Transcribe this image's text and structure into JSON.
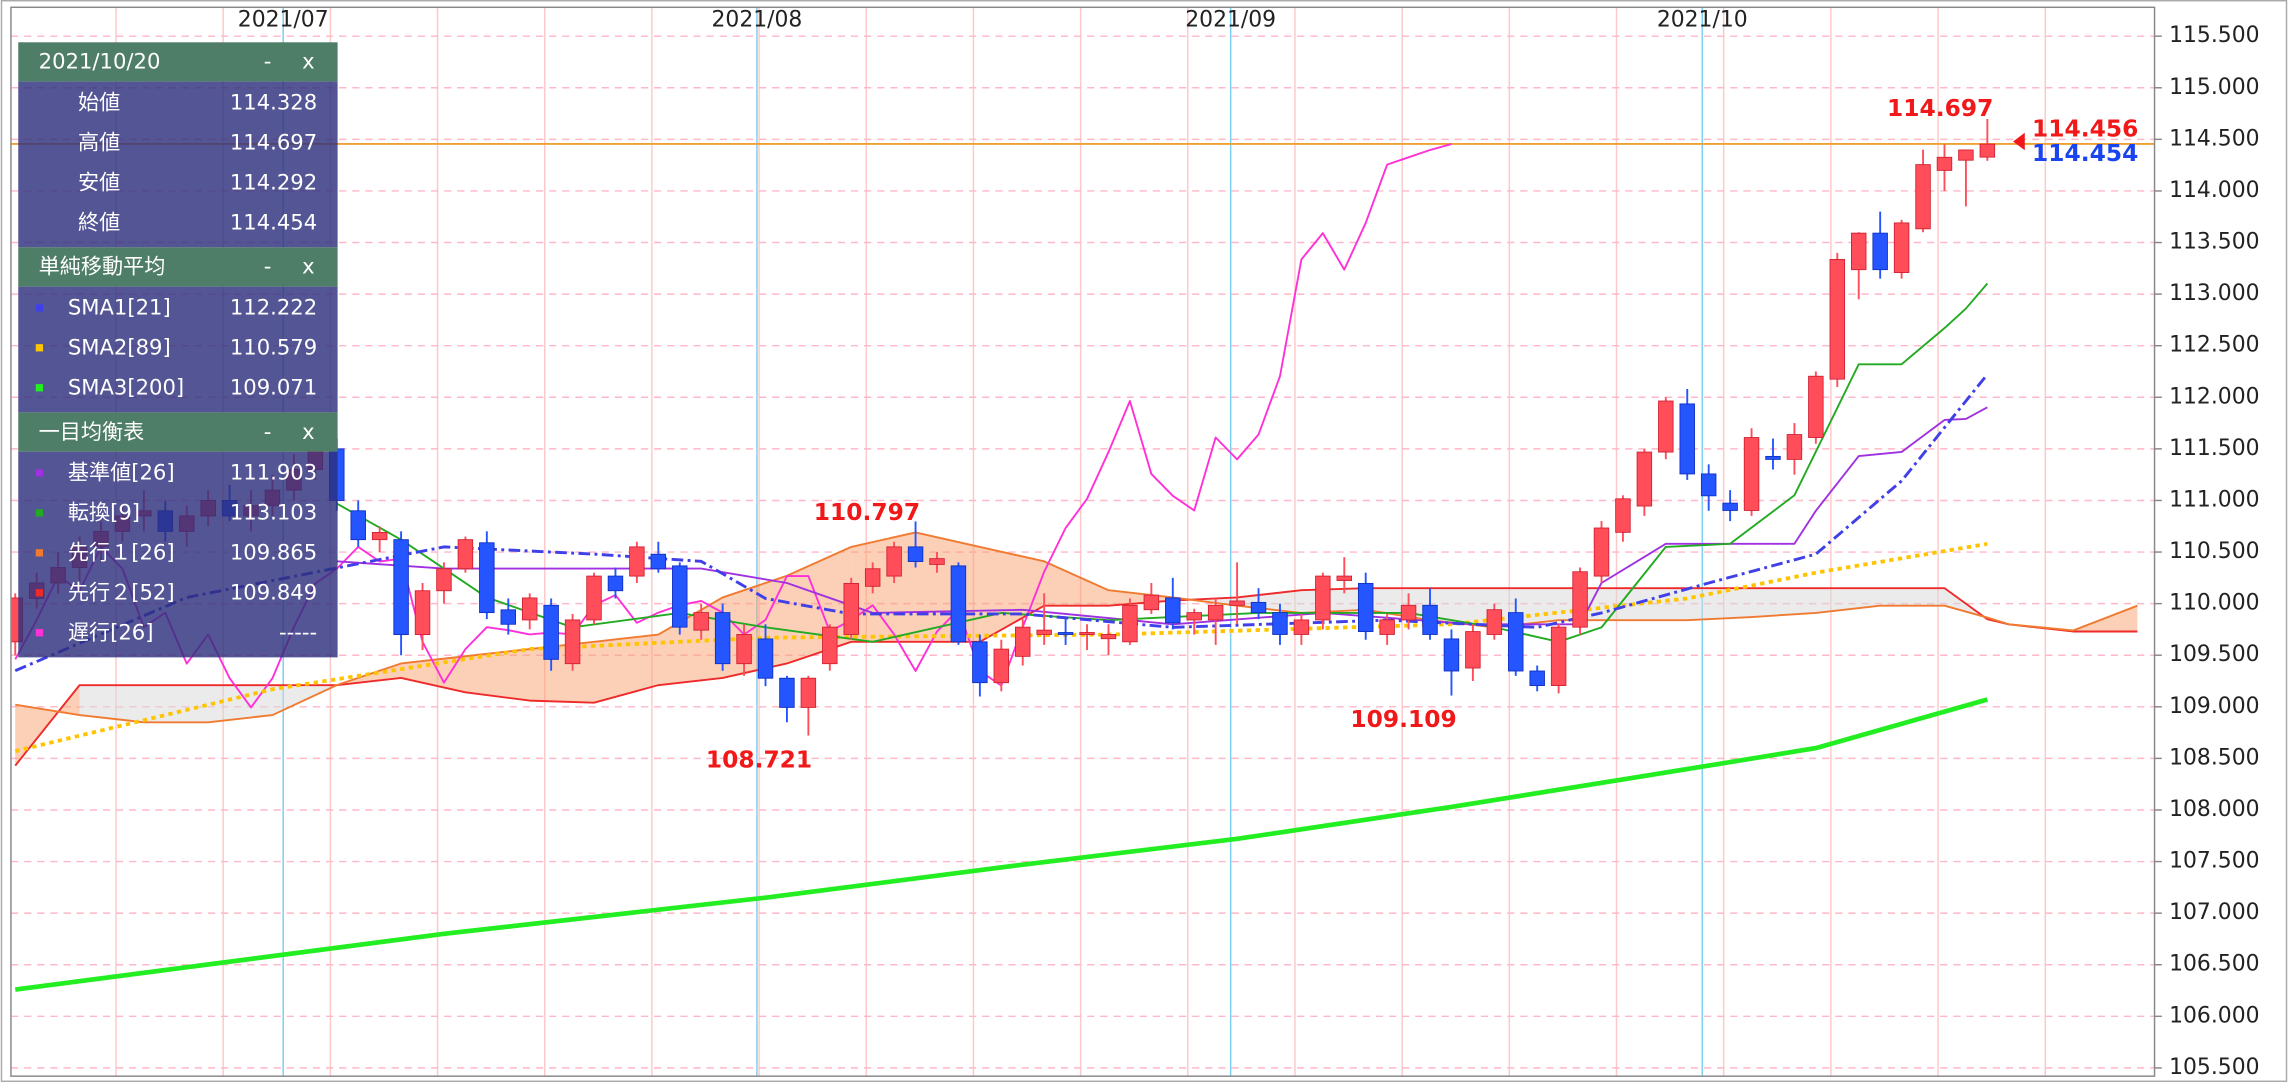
{
  "chart_data": {
    "type": "candlestick",
    "date": "2021/10/20",
    "controls": {
      "minimize": "-",
      "close": "x"
    },
    "xlim": [
      -0.2,
      99.8
    ],
    "xticks": [
      {
        "value": 12.5,
        "label": "2021/07"
      },
      {
        "value": 34.6,
        "label": "2021/08"
      },
      {
        "value": 56.7,
        "label": "2021/09"
      },
      {
        "value": 78.7,
        "label": "2021/10"
      }
    ],
    "ylim": [
      105.42,
      115.78
    ],
    "yticks": [
      {
        "value": 105.5,
        "label": "105.500"
      },
      {
        "value": 106,
        "label": "106.000"
      },
      {
        "value": 106.5,
        "label": "106.500"
      },
      {
        "value": 107,
        "label": "107.000"
      },
      {
        "value": 107.5,
        "label": "107.500"
      },
      {
        "value": 108,
        "label": "108.000"
      },
      {
        "value": 108.5,
        "label": "108.500"
      },
      {
        "value": 109,
        "label": "109.000"
      },
      {
        "value": 109.5,
        "label": "109.500"
      },
      {
        "value": 110,
        "label": "110.000"
      },
      {
        "value": 110.5,
        "label": "110.500"
      },
      {
        "value": 111,
        "label": "111.000"
      },
      {
        "value": 111.5,
        "label": "111.500"
      },
      {
        "value": 112,
        "label": "112.000"
      },
      {
        "value": 112.5,
        "label": "112.500"
      },
      {
        "value": 113,
        "label": "113.000"
      },
      {
        "value": 113.5,
        "label": "113.500"
      },
      {
        "value": 114,
        "label": "114.000"
      },
      {
        "value": 114.5,
        "label": "114.500"
      },
      {
        "value": 115,
        "label": "115.000"
      },
      {
        "value": 115.5,
        "label": "115.500"
      }
    ],
    "grid": true,
    "up_color": "#ff4d5a",
    "down_color": "#2455ff",
    "ohlc_labels": [
      "始値",
      "高値",
      "安値",
      "終値"
    ],
    "open": [
      109.63,
      110.05,
      110.2,
      110.35,
      110.55,
      110.7,
      110.85,
      110.9,
      110.7,
      110.85,
      111.0,
      110.85,
      110.95,
      111.1,
      111.3,
      111.5,
      110.9,
      110.62,
      110.62,
      109.7,
      110.125,
      110.338,
      110.59,
      109.94,
      109.842,
      109.984,
      109.418,
      109.842,
      110.267,
      110.267,
      110.479,
      110.366,
      109.743,
      109.913,
      109.418,
      109.658,
      109.277,
      108.994,
      109.418,
      109.701,
      110.168,
      110.267,
      110.55,
      110.38,
      110.366,
      109.63,
      109.234,
      109.489,
      109.701,
      109.72,
      109.7,
      109.66,
      109.63,
      109.941,
      110.055,
      109.842,
      109.842,
      109.984,
      110.012,
      109.913,
      109.701,
      109.842,
      110.224,
      110.196,
      109.701,
      109.842,
      109.984,
      109.658,
      109.376,
      109.701,
      109.913,
      109.347,
      109.206,
      109.772,
      110.267,
      110.691,
      110.946,
      111.469,
      111.936,
      111.257,
      110.974,
      110.903,
      111.427,
      111.398,
      111.61,
      112.176,
      113.237,
      113.591,
      113.209,
      113.633,
      114.199,
      114.298,
      114.328
    ],
    "high": [
      110.1,
      110.3,
      110.5,
      110.65,
      110.8,
      110.95,
      111.1,
      111.0,
      110.95,
      111.1,
      111.15,
      111.1,
      111.25,
      111.45,
      111.653,
      111.6,
      111.0,
      110.75,
      110.7,
      110.2,
      110.4,
      110.65,
      110.7,
      110.05,
      110.1,
      110.05,
      109.9,
      110.3,
      110.35,
      110.6,
      110.6,
      110.4,
      110.0,
      110.0,
      109.8,
      109.8,
      109.3,
      109.3,
      109.8,
      110.25,
      110.4,
      110.6,
      110.797,
      110.5,
      110.4,
      109.7,
      109.65,
      109.85,
      110.1,
      109.85,
      109.8,
      109.8,
      110.05,
      110.2,
      110.25,
      109.95,
      110.05,
      110.4,
      110.15,
      110.0,
      109.9,
      110.3,
      110.45,
      110.3,
      109.9,
      110.1,
      110.15,
      109.75,
      109.8,
      110.0,
      110.05,
      109.4,
      109.8,
      110.35,
      110.8,
      111.05,
      111.5,
      112.0,
      112.08,
      111.35,
      111.1,
      111.7,
      111.6,
      111.75,
      112.25,
      113.4,
      113.6,
      113.8,
      113.72,
      114.4,
      114.45,
      114.4,
      114.697
    ],
    "low": [
      109.5,
      109.95,
      110.1,
      110.2,
      110.4,
      110.6,
      110.7,
      110.6,
      110.55,
      110.75,
      110.8,
      110.7,
      110.85,
      111.0,
      111.2,
      110.9,
      110.55,
      110.5,
      109.5,
      109.55,
      110.0,
      110.3,
      109.85,
      109.7,
      109.75,
      109.35,
      109.35,
      109.8,
      110.05,
      110.2,
      110.3,
      109.7,
      109.65,
      109.35,
      109.3,
      109.2,
      108.85,
      108.721,
      109.35,
      109.65,
      110.1,
      110.2,
      110.35,
      110.3,
      109.6,
      109.1,
      109.15,
      109.4,
      109.6,
      109.6,
      109.55,
      109.5,
      109.6,
      109.9,
      109.75,
      109.7,
      109.6,
      109.8,
      109.85,
      109.6,
      109.6,
      109.75,
      110.1,
      109.65,
      109.6,
      109.75,
      109.65,
      109.109,
      109.25,
      109.65,
      109.3,
      109.15,
      109.13,
      109.7,
      110.2,
      110.6,
      110.85,
      111.4,
      111.2,
      110.9,
      110.8,
      110.85,
      111.3,
      111.25,
      111.55,
      112.1,
      112.95,
      113.15,
      113.15,
      113.6,
      114.0,
      113.85,
      114.292
    ],
    "close": [
      110.055,
      110.2,
      110.35,
      110.55,
      110.7,
      110.85,
      110.9,
      110.7,
      110.85,
      111.0,
      110.85,
      110.95,
      111.1,
      111.3,
      111.5,
      111.0,
      110.62,
      110.69,
      109.7,
      110.125,
      110.338,
      110.62,
      109.913,
      109.8,
      110.055,
      109.46,
      109.842,
      110.267,
      110.125,
      110.55,
      110.338,
      109.772,
      109.913,
      109.418,
      109.701,
      109.277,
      108.994,
      109.277,
      109.772,
      110.196,
      110.338,
      110.55,
      110.408,
      110.436,
      109.63,
      109.234,
      109.559,
      109.772,
      109.743,
      109.701,
      109.72,
      109.701,
      109.984,
      110.083,
      109.814,
      109.913,
      109.984,
      110.026,
      109.913,
      109.701,
      109.842,
      110.267,
      110.267,
      109.729,
      109.842,
      109.984,
      109.701,
      109.347,
      109.729,
      109.941,
      109.347,
      109.206,
      109.772,
      110.309,
      110.733,
      111.016,
      111.469,
      111.964,
      111.257,
      111.045,
      110.903,
      111.61,
      111.398,
      111.639,
      112.204,
      113.336,
      113.591,
      113.237,
      113.69,
      114.255,
      114.326,
      114.397,
      114.454
    ],
    "price_line": {
      "value": 114.456,
      "color": "#f0a030"
    },
    "sma": {
      "title": "単純移動平均",
      "series": [
        {
          "name": "SMA1[21]",
          "color": "#4040e8",
          "style": "dash-dot",
          "x": [
            0,
            8,
            20,
            27,
            32,
            35,
            39,
            47,
            54,
            64,
            71,
            74,
            79,
            84,
            88,
            92
          ],
          "values": [
            109.35,
            110.06,
            110.55,
            110.48,
            110.41,
            110.05,
            109.9,
            109.9,
            109.77,
            109.84,
            109.77,
            109.91,
            110.2,
            110.48,
            111.19,
            112.222
          ]
        },
        {
          "name": "SMA2[89]",
          "color": "#ffc400",
          "style": "dotted",
          "x": [
            0,
            12,
            24,
            35,
            51,
            67,
            78,
            84,
            92
          ],
          "values": [
            108.57,
            109.17,
            109.56,
            109.67,
            109.7,
            109.8,
            110.05,
            110.3,
            110.579
          ]
        },
        {
          "name": "SMA3[200]",
          "color": "#22ee22",
          "style": "thick",
          "x": [
            0,
            20,
            35,
            47,
            57,
            67,
            79,
            84,
            92
          ],
          "values": [
            106.26,
            106.8,
            107.15,
            107.47,
            107.72,
            108.03,
            108.43,
            108.6,
            109.071
          ]
        }
      ]
    },
    "ichimoku": {
      "title": "一目均衡表",
      "cloud_up_color": "#f9a070",
      "cloud_down_color": "#d8d8d8",
      "series": [
        {
          "name": "基準値[26]",
          "color": "#a030e0",
          "style": "solid",
          "x": [
            15,
            20,
            32,
            36,
            40,
            47,
            54,
            61,
            68,
            73,
            74,
            77,
            83,
            84,
            86,
            88,
            90,
            91,
            92
          ],
          "values": [
            110.41,
            110.34,
            110.34,
            110.2,
            109.91,
            109.94,
            109.8,
            109.91,
            109.8,
            109.8,
            110.2,
            110.58,
            110.58,
            110.9,
            111.43,
            111.47,
            111.78,
            111.79,
            111.903
          ]
        },
        {
          "name": "転換[9]",
          "color": "#22aa22",
          "style": "solid",
          "x": [
            15,
            18,
            22,
            26,
            31,
            35,
            40,
            46,
            51,
            58,
            65,
            69,
            72,
            74,
            77,
            80,
            83,
            86,
            88,
            90,
            91,
            92
          ],
          "values": [
            110.97,
            110.62,
            110.06,
            109.77,
            109.91,
            109.77,
            109.63,
            109.91,
            109.84,
            109.91,
            109.91,
            109.77,
            109.63,
            109.77,
            110.55,
            110.58,
            111.05,
            112.32,
            112.32,
            112.67,
            112.86,
            113.103
          ]
        },
        {
          "name": "先行１[26]",
          "color": "#f07a30",
          "style": "solid",
          "x": [
            0,
            3,
            6,
            9,
            12,
            15,
            18,
            21,
            24,
            27,
            30,
            33,
            36,
            39,
            42,
            45,
            48,
            51,
            54,
            57,
            60,
            63,
            66,
            69,
            72,
            75,
            78,
            81,
            84,
            87,
            90,
            92,
            93,
            96,
            99
          ],
          "values": [
            109.02,
            108.92,
            108.85,
            108.85,
            108.92,
            109.21,
            109.42,
            109.49,
            109.56,
            109.63,
            109.7,
            110.06,
            110.27,
            110.55,
            110.69,
            110.55,
            110.41,
            110.13,
            110.06,
            109.98,
            109.91,
            109.94,
            109.84,
            109.77,
            109.84,
            109.84,
            109.84,
            109.87,
            109.91,
            109.98,
            109.98,
            109.865,
            109.8,
            109.74,
            109.98
          ]
        },
        {
          "name": "先行２[52]",
          "color": "#ee2a2a",
          "style": "solid",
          "x": [
            0,
            3,
            6,
            9,
            12,
            15,
            18,
            21,
            24,
            27,
            30,
            33,
            36,
            39,
            42,
            45,
            48,
            51,
            54,
            57,
            60,
            63,
            66,
            69,
            72,
            75,
            78,
            81,
            84,
            87,
            90,
            92,
            93,
            96,
            99
          ],
          "values": [
            108.43,
            109.21,
            109.21,
            109.21,
            109.21,
            109.21,
            109.28,
            109.14,
            109.06,
            109.04,
            109.21,
            109.28,
            109.42,
            109.63,
            109.63,
            109.63,
            109.98,
            109.98,
            110.03,
            110.06,
            110.13,
            110.15,
            110.15,
            110.15,
            110.15,
            110.15,
            110.15,
            110.15,
            110.15,
            110.15,
            110.15,
            109.849,
            109.8,
            109.73,
            109.73
          ]
        },
        {
          "name": "遅行[26]",
          "color": "#ff30d8",
          "style": "solid",
          "value_label": "-----",
          "values": [
            109.46,
            109.842,
            110.267,
            110.125,
            110.55,
            110.338,
            109.772,
            109.913,
            109.418,
            109.701,
            109.277,
            108.994,
            109.277,
            109.772,
            110.196,
            110.338,
            110.55,
            110.408,
            110.436,
            109.63,
            109.234,
            109.559,
            109.772,
            109.743,
            109.701,
            109.72,
            109.701,
            109.984,
            110.083,
            109.814,
            109.913,
            109.984,
            110.026,
            109.913,
            109.701,
            109.842,
            110.267,
            110.267,
            109.729,
            109.842,
            109.984,
            109.701,
            109.347,
            109.729,
            109.941,
            109.347,
            109.206,
            109.772,
            110.309,
            110.733,
            111.016,
            111.469,
            111.964,
            111.257,
            111.045,
            110.903,
            111.61,
            111.398,
            111.639,
            112.204,
            113.336,
            113.591,
            113.237,
            113.69,
            114.255,
            114.326,
            114.397,
            114.454
          ]
        }
      ]
    }
  }
}
